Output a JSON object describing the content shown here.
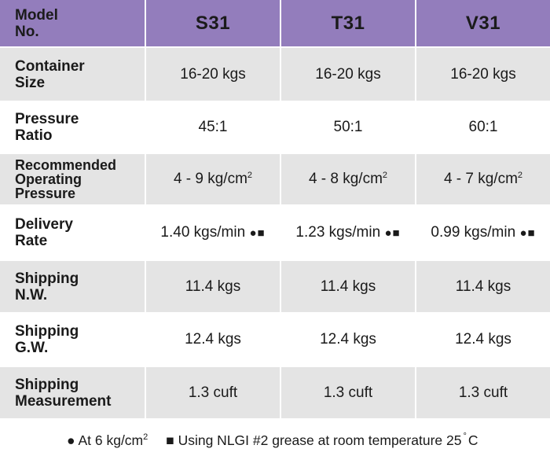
{
  "header": {
    "label_line1": "Model",
    "label_line2": "No.",
    "models": [
      "S31",
      "T31",
      "V31"
    ]
  },
  "rows": [
    {
      "label1": "Container",
      "label2": "Size",
      "label3": "",
      "values": [
        "16-20 kgs",
        "16-20 kgs",
        "16-20 kgs"
      ]
    },
    {
      "label1": "Pressure",
      "label2": "Ratio",
      "label3": "",
      "values": [
        "45:1",
        "50:1",
        "60:1"
      ]
    },
    {
      "label1": "Recommended",
      "label2": "Operating",
      "label3": "Pressure",
      "values": [
        "4 - 9 kg/cm",
        "4 - 8 kg/cm",
        "4 - 7 kg/cm"
      ],
      "superscript": "2"
    },
    {
      "label1": "Delivery",
      "label2": "Rate",
      "label3": "",
      "values": [
        "1.40 kgs/min",
        "1.23 kgs/min",
        "0.99 kgs/min"
      ],
      "marks": "●■"
    },
    {
      "label1": "Shipping",
      "label2": "N.W.",
      "label3": "",
      "values": [
        "11.4 kgs",
        "11.4 kgs",
        "11.4 kgs"
      ]
    },
    {
      "label1": "Shipping",
      "label2": "G.W.",
      "label3": "",
      "values": [
        "12.4 kgs",
        "12.4 kgs",
        "12.4 kgs"
      ]
    },
    {
      "label1": "Shipping",
      "label2": "Measurement",
      "label3": "",
      "values": [
        "1.3 cuft",
        "1.3 cuft",
        "1.3 cuft"
      ]
    }
  ],
  "footnotes": {
    "note1_text": "● At 6 kg/cm",
    "note1_sup": "2",
    "note2_text": "■ Using NLGI #2 grease at room temperature 25",
    "note2_degree": "°",
    "note2_unit": "C"
  },
  "colors": {
    "header_bg": "#937dbc",
    "shade_row_bg": "#e4e4e4",
    "white_row_bg": "#ffffff"
  }
}
